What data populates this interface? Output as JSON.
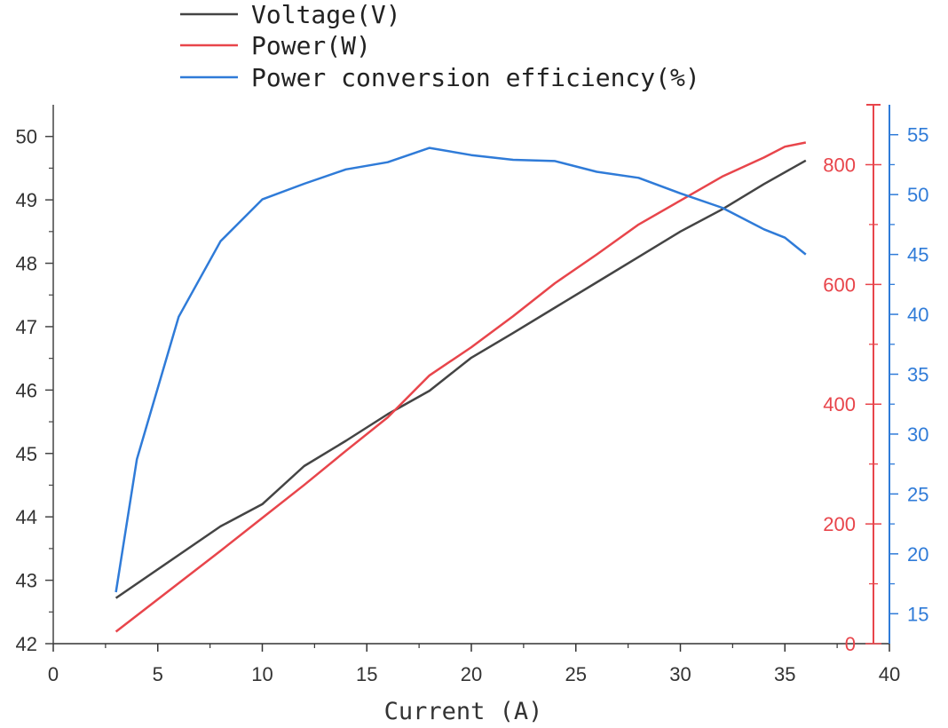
{
  "chart_data": {
    "type": "line",
    "xlabel": "Current (A)",
    "x_ticks": [
      0,
      5,
      10,
      15,
      20,
      25,
      30,
      35,
      40
    ],
    "xlim": [
      0,
      40
    ],
    "axes": {
      "voltage": {
        "ylim": [
          42,
          50.5
        ],
        "ticks": [
          42,
          43,
          44,
          45,
          46,
          47,
          48,
          49,
          50
        ],
        "color": "#444444"
      },
      "power": {
        "ylim": [
          0,
          900
        ],
        "ticks": [
          0,
          200,
          400,
          600,
          800
        ],
        "color": "#e8454b"
      },
      "efficiency": {
        "ylim": [
          12.5,
          57.5
        ],
        "ticks": [
          15,
          20,
          25,
          30,
          35,
          40,
          45,
          50,
          55
        ],
        "color": "#2f7bd8"
      }
    },
    "series": [
      {
        "name": "Voltage(V)",
        "axis": "voltage",
        "color": "#444444",
        "x": [
          3,
          8,
          10,
          12,
          14,
          16,
          18,
          20,
          22,
          24,
          26,
          28,
          30,
          32,
          34,
          36
        ],
        "y": [
          42.72,
          43.85,
          44.2,
          44.8,
          45.2,
          45.62,
          45.99,
          46.51,
          46.9,
          47.3,
          47.7,
          48.1,
          48.5,
          48.85,
          49.25,
          49.62
        ]
      },
      {
        "name": "Power(W)",
        "axis": "power",
        "color": "#e8454b",
        "x": [
          3,
          6,
          8,
          10,
          12,
          14,
          16,
          18,
          20,
          22,
          24,
          26,
          28,
          30,
          32,
          34,
          35,
          36
        ],
        "y": [
          20,
          101,
          155,
          210,
          265,
          322,
          378,
          448,
          495,
          547,
          602,
          650,
          700,
          740,
          780,
          812,
          830,
          837
        ]
      },
      {
        "name": "Power conversion efficiency(%)",
        "axis": "efficiency",
        "color": "#2f7bd8",
        "x": [
          3,
          4,
          6,
          8,
          10,
          12,
          14,
          16,
          18,
          20,
          22,
          24,
          26,
          28,
          30,
          32,
          34,
          35,
          36
        ],
        "y": [
          16.8,
          27.9,
          39.8,
          46.1,
          49.6,
          50.9,
          52.1,
          52.7,
          53.9,
          53.3,
          52.9,
          52.8,
          51.9,
          51.4,
          50.1,
          48.9,
          47.1,
          46.4,
          45.0
        ]
      }
    ]
  }
}
